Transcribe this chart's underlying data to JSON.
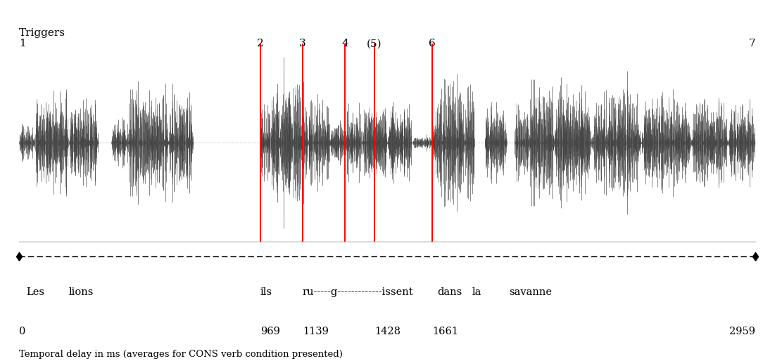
{
  "title": "Triggers",
  "total_duration_ms": 2959,
  "trigger_labels": [
    "1",
    "2",
    "3",
    "4",
    "(5)",
    "6",
    "7"
  ],
  "trigger_times_ms": [
    0,
    969,
    1139,
    1310,
    1428,
    1661,
    2959
  ],
  "red_lines_ms": [
    969,
    1139,
    1310,
    1428,
    1661
  ],
  "word_labels": [
    "Les",
    "lions",
    "ils",
    "ru-----g-------------issent",
    "dans",
    "la",
    "savanne"
  ],
  "word_times_ms": [
    30,
    200,
    969,
    1139,
    1680,
    1820,
    1970
  ],
  "time_labels": [
    "0",
    "969",
    "1139",
    "1428",
    "1661",
    "2959"
  ],
  "time_values_ms": [
    0,
    969,
    1139,
    1428,
    1661,
    2959
  ],
  "bottom_label": "Temporal delay in ms (averages for CONS verb condition presented)",
  "bg_color": "#ffffff",
  "waveform_color": "#3d3d3d",
  "red_line_color": "#ff0000"
}
